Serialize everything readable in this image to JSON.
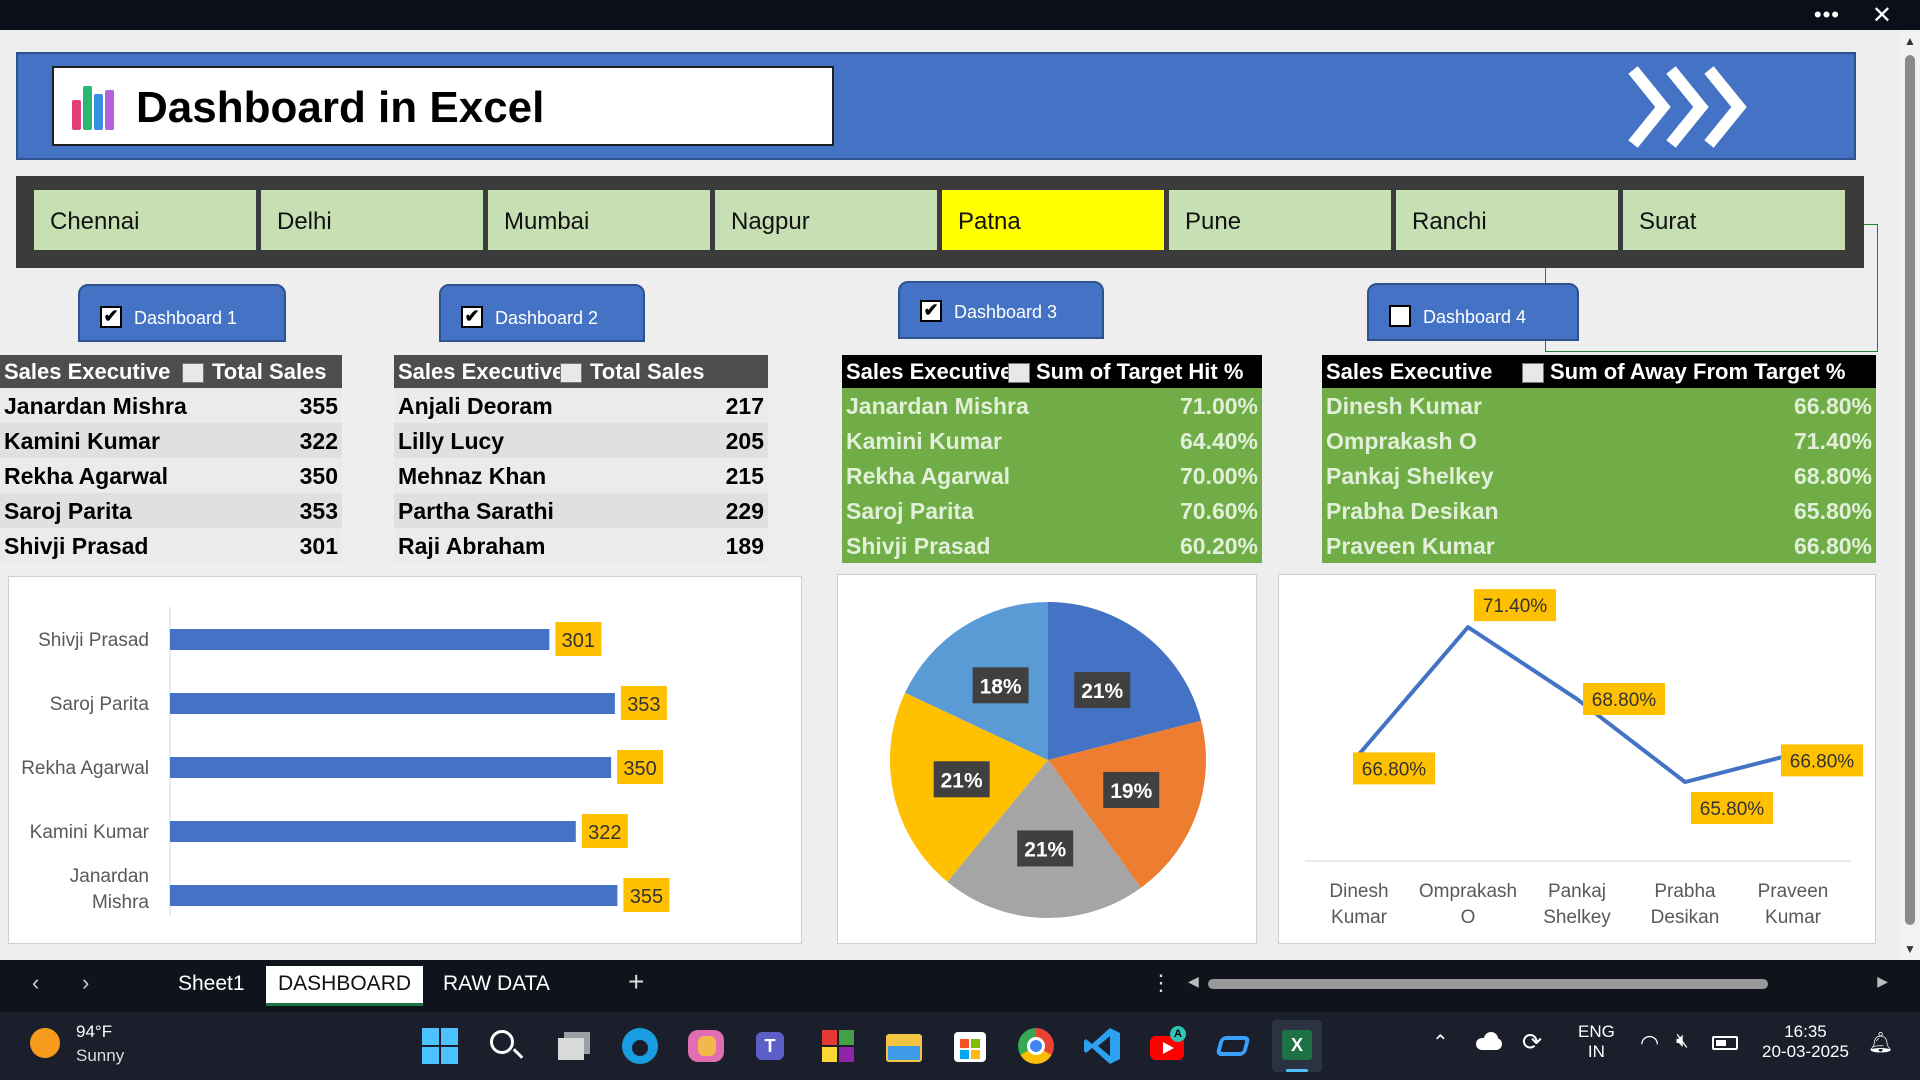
{
  "window": {
    "more_label": "•••",
    "close_label": "✕"
  },
  "header": {
    "title": "Dashboard in Excel"
  },
  "cities": {
    "items": [
      "Chennai",
      "Delhi",
      "Mumbai",
      "Nagpur",
      "Patna",
      "Pune",
      "Ranchi",
      "Surat"
    ],
    "selected": "Patna"
  },
  "dashboards": [
    {
      "label": "Dashboard 1",
      "checked": "✔"
    },
    {
      "label": "Dashboard 2",
      "checked": "✔"
    },
    {
      "label": "Dashboard 3",
      "checked": "✔"
    },
    {
      "label": "Dashboard 4",
      "checked": ""
    }
  ],
  "table1": {
    "headers": [
      "Sales Executive",
      "Total Sales"
    ],
    "rows": [
      [
        "Janardan Mishra",
        "355"
      ],
      [
        "Kamini Kumar",
        "322"
      ],
      [
        "Rekha Agarwal",
        "350"
      ],
      [
        "Saroj Parita",
        "353"
      ],
      [
        "Shivji Prasad",
        "301"
      ]
    ]
  },
  "table2": {
    "headers": [
      "Sales Executive",
      "Total Sales"
    ],
    "rows": [
      [
        "Anjali Deoram",
        "217"
      ],
      [
        "Lilly Lucy",
        "205"
      ],
      [
        "Mehnaz Khan",
        "215"
      ],
      [
        "Partha Sarathi",
        "229"
      ],
      [
        "Raji Abraham",
        "189"
      ]
    ]
  },
  "table3": {
    "headers": [
      "Sales Executive",
      "Sum of Target Hit %"
    ],
    "rows": [
      [
        "Janardan Mishra",
        "71.00%"
      ],
      [
        "Kamini Kumar",
        "64.40%"
      ],
      [
        "Rekha Agarwal",
        "70.00%"
      ],
      [
        "Saroj Parita",
        "70.60%"
      ],
      [
        "Shivji Prasad",
        "60.20%"
      ]
    ]
  },
  "table4": {
    "headers": [
      "Sales Executive",
      "Sum of Away From Target %"
    ],
    "rows": [
      [
        "Dinesh Kumar",
        "66.80%"
      ],
      [
        "Omprakash O",
        "71.40%"
      ],
      [
        "Pankaj Shelkey",
        "68.80%"
      ],
      [
        "Prabha Desikan",
        "65.80%"
      ],
      [
        "Praveen Kumar",
        "66.80%"
      ]
    ]
  },
  "chart_data": [
    {
      "type": "bar",
      "orientation": "horizontal",
      "categories": [
        "Shivji Prasad",
        "Saroj Parita",
        "Rekha Agarwal",
        "Kamini Kumar",
        "Janardan Mishra"
      ],
      "values": [
        301,
        353,
        350,
        322,
        355
      ],
      "data_labels": [
        "301",
        "353",
        "350",
        "322",
        "355"
      ],
      "color": "#4472c4",
      "label_bg": "#ffc000"
    },
    {
      "type": "pie",
      "values": [
        21,
        19,
        21,
        21,
        18
      ],
      "data_labels": [
        "21%",
        "19%",
        "21%",
        "21%",
        "18%"
      ],
      "colors": [
        "#4472c4",
        "#ed7d31",
        "#a5a5a5",
        "#ffc000",
        "#5b9bd5"
      ]
    },
    {
      "type": "line",
      "categories": [
        "Dinesh Kumar",
        "Omprakash O",
        "Pankaj Shelkey",
        "Prabha Desikan",
        "Praveen Kumar"
      ],
      "category_lines": [
        [
          "Dinesh",
          "Kumar"
        ],
        [
          "Omprakash",
          "O"
        ],
        [
          "Pankaj",
          "Shelkey"
        ],
        [
          "Prabha",
          "Desikan"
        ],
        [
          "Praveen",
          "Kumar"
        ]
      ],
      "values": [
        66.8,
        71.4,
        68.8,
        65.8,
        66.8
      ],
      "data_labels": [
        "66.80%",
        "71.40%",
        "68.80%",
        "65.80%",
        "66.80%"
      ],
      "color": "#4472c4",
      "label_bg": "#ffc000"
    }
  ],
  "sheet_tabs": {
    "items": [
      "Sheet1",
      "DASHBOARD",
      "RAW DATA"
    ],
    "active": "DASHBOARD",
    "add_label": "+"
  },
  "taskbar": {
    "weather_temp": "94°F",
    "weather_desc": "Sunny",
    "lang_1": "ENG",
    "lang_2": "IN",
    "time": "16:35",
    "date": "20-03-2025"
  }
}
